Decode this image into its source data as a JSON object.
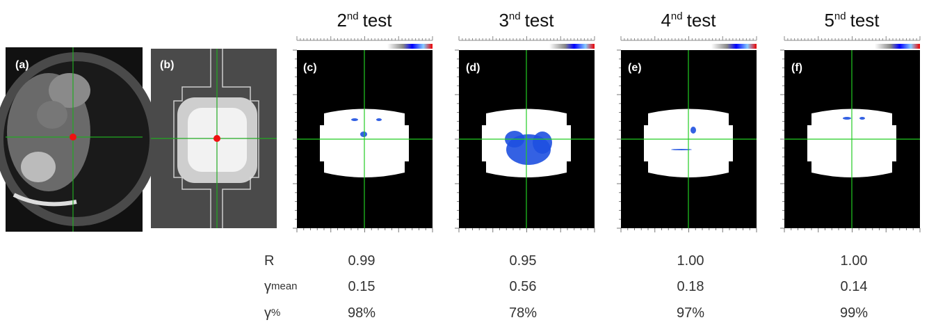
{
  "panels": [
    "(a)",
    "(b)",
    "(c)",
    "(d)",
    "(e)",
    "(f)"
  ],
  "tests": [
    {
      "number": "2",
      "suffix": "nd",
      "word": "test"
    },
    {
      "number": "3",
      "suffix": "nd",
      "word": "test"
    },
    {
      "number": "4",
      "suffix": "nd",
      "word": "test"
    },
    {
      "number": "5",
      "suffix": "nd",
      "word": "test"
    }
  ],
  "table": {
    "rows": [
      {
        "label": "R",
        "values": [
          "0.99",
          "0.95",
          "1.00",
          "1.00"
        ]
      },
      {
        "label": "γ",
        "sub": "mean",
        "values": [
          "0.15",
          "0.56",
          "0.18",
          "0.14"
        ]
      },
      {
        "label": "γ",
        "sub": "%",
        "values": [
          "98%",
          "78%",
          "97%",
          "99%"
        ]
      }
    ]
  }
}
